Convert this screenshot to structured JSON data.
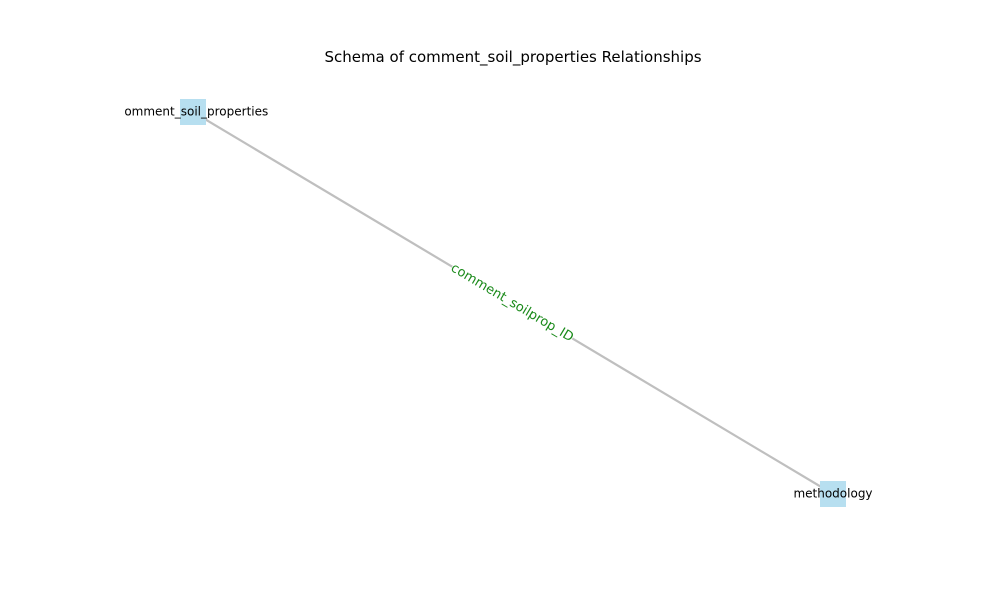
{
  "title": "Schema of comment_soil_properties Relationships",
  "colors": {
    "node_fill": "#b7dff0",
    "edge_stroke": "#bfbfbf",
    "edge_label": "#1a8a1a",
    "text": "#000000"
  },
  "nodes": [
    {
      "id": "comment_soil_properties",
      "label": "comment_soil_properties"
    },
    {
      "id": "methodology",
      "label": "methodology"
    }
  ],
  "edges": [
    {
      "source": "comment_soil_properties",
      "target": "methodology",
      "label": "comment_soilprop_ID"
    }
  ]
}
